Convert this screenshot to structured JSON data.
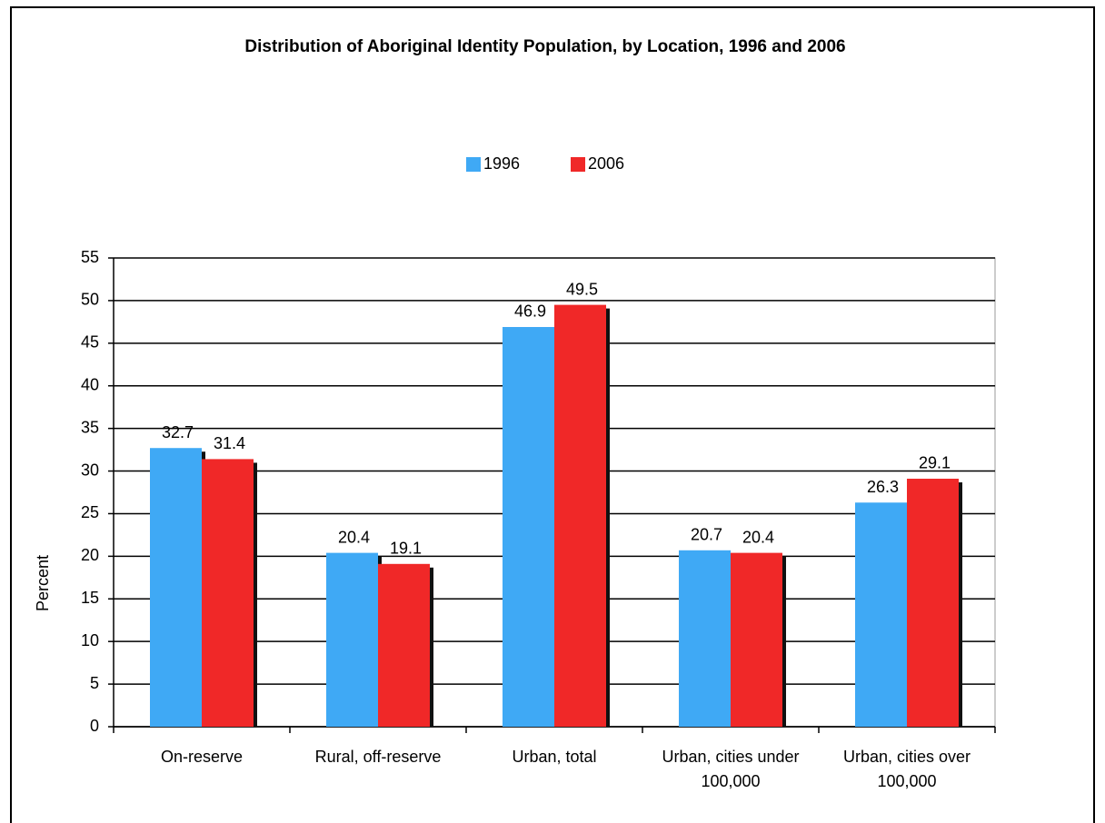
{
  "chart_data": {
    "type": "bar",
    "title": "Distribution of Aboriginal Identity Population, by Location, 1996 and 2006",
    "y_label": "Percent",
    "categories": [
      "On-reserve",
      "Rural, off-reserve",
      "Urban, total",
      "Urban, cities under 100,000",
      "Urban, cities over 100,000"
    ],
    "series": [
      {
        "name": "1996",
        "color": "#3fa9f5",
        "values": [
          32.7,
          20.4,
          46.9,
          20.7,
          26.3
        ]
      },
      {
        "name": "2006",
        "color": "#f02828",
        "values": [
          31.4,
          19.1,
          49.5,
          20.4,
          29.1
        ]
      }
    ],
    "ylim": [
      0,
      55
    ],
    "yticks": [
      0,
      5,
      10,
      15,
      20,
      25,
      30,
      35,
      40,
      45,
      50,
      55
    ],
    "grid": true,
    "legend": "top"
  }
}
